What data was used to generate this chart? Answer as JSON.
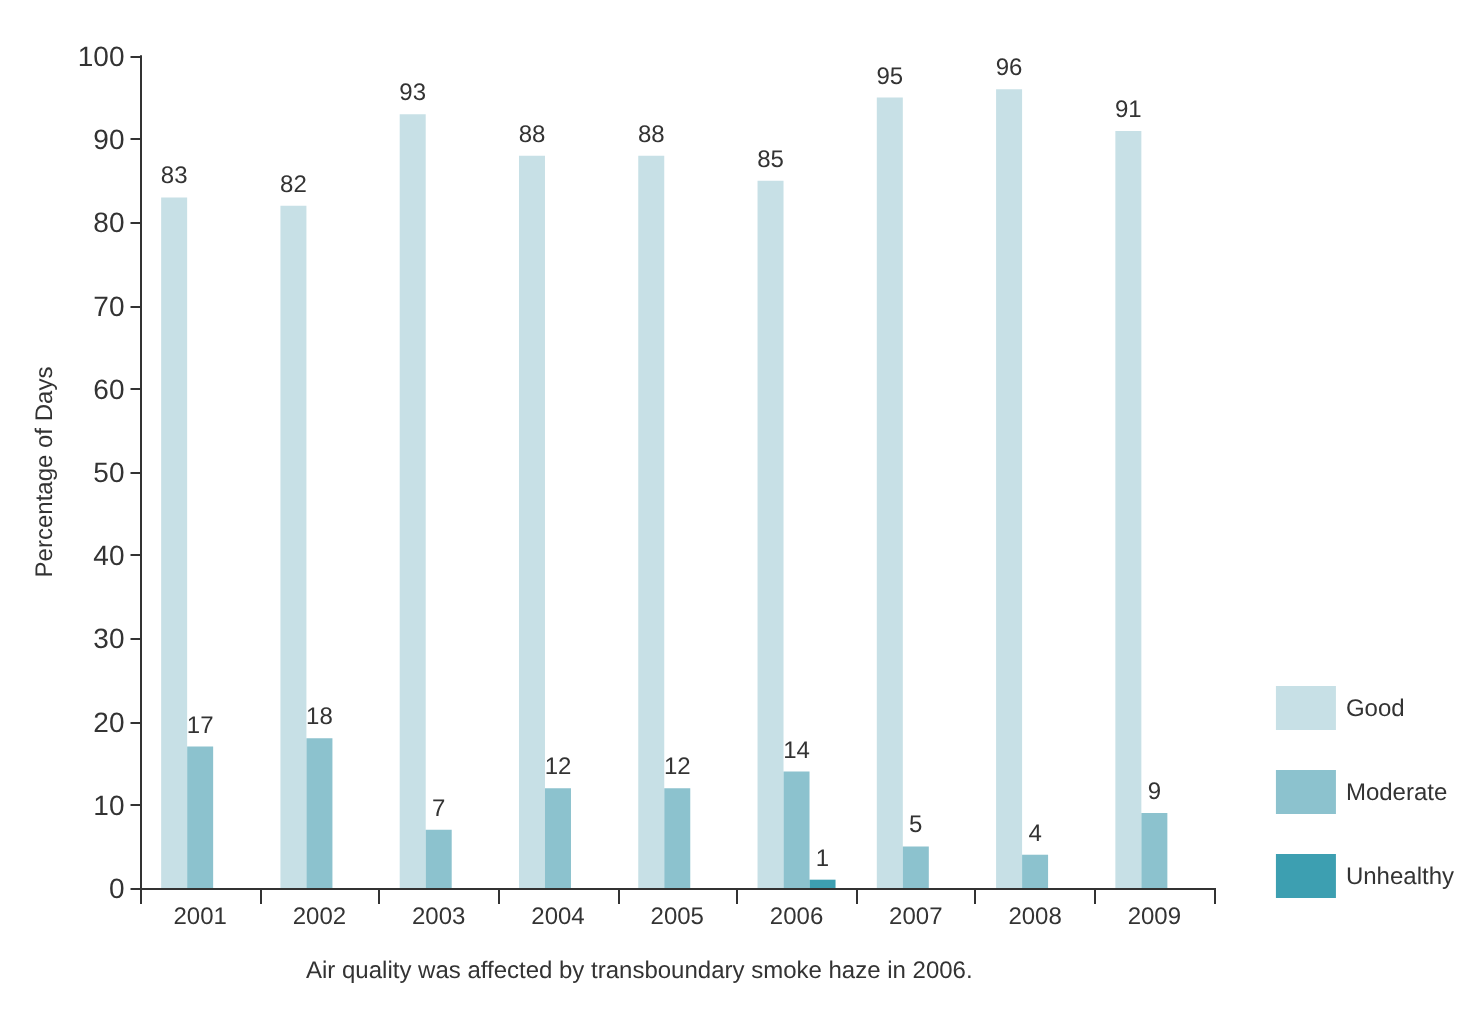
{
  "chart_data": {
    "type": "bar",
    "ylabel": "Percentage of Days",
    "categories": [
      "2001",
      "2002",
      "2003",
      "2004",
      "2005",
      "2006",
      "2007",
      "2008",
      "2009"
    ],
    "series": [
      {
        "name": "Good",
        "color": "#c7e0e6",
        "values": [
          83,
          82,
          93,
          88,
          88,
          85,
          95,
          96,
          91
        ]
      },
      {
        "name": "Moderate",
        "color": "#8cc2ce",
        "values": [
          17,
          18,
          7,
          12,
          12,
          14,
          5,
          4,
          9
        ]
      },
      {
        "name": "Unhealthy",
        "color": "#3d9fb1",
        "values": [
          null,
          null,
          null,
          null,
          null,
          1,
          null,
          null,
          null
        ]
      }
    ],
    "ylim": [
      0,
      100
    ],
    "yticks": [
      0,
      10,
      20,
      30,
      40,
      50,
      60,
      70,
      80,
      90,
      100
    ],
    "grid": false,
    "legend": "right",
    "data_labels": true,
    "annotations": [
      "Air quality was affected by transboundary smoke haze in 2006."
    ]
  }
}
